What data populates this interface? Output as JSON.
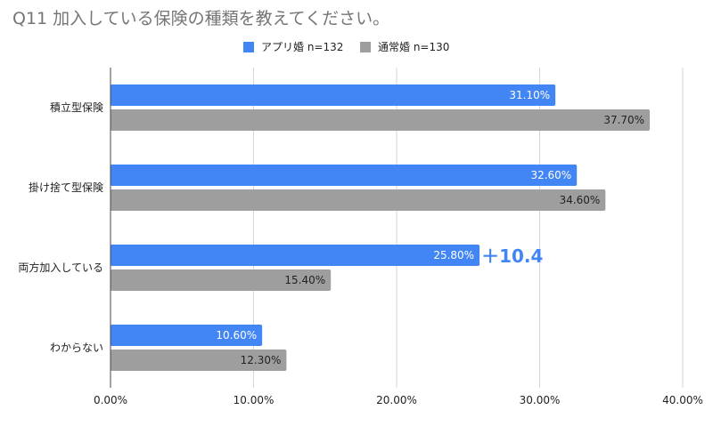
{
  "chart_data": {
    "type": "bar",
    "orientation": "horizontal",
    "title": "Q11 加入している保険の種類を教えてください。",
    "categories": [
      "積立型保険",
      "掛け捨て型保険",
      "両方加入している",
      "わからない"
    ],
    "series": [
      {
        "name": "アプリ婚 n=132",
        "color": "#4285f4",
        "values": [
          31.1,
          32.6,
          25.8,
          10.6
        ],
        "labels": [
          "31.10%",
          "32.60%",
          "25.80%",
          "10.60%"
        ]
      },
      {
        "name": "通常婚 n=130",
        "color": "#9e9e9e",
        "values": [
          37.7,
          34.6,
          15.4,
          12.3
        ],
        "labels": [
          "37.70%",
          "34.60%",
          "15.40%",
          "12.30%"
        ]
      }
    ],
    "xlim": [
      0,
      40
    ],
    "xticks": [
      "0.00%",
      "10.00%",
      "20.00%",
      "30.00%",
      "40.00%"
    ],
    "grid": true,
    "legend": "top-right",
    "annotations": [
      {
        "text": "＋10.4",
        "category": "両方加入している",
        "color": "#4285f4"
      }
    ]
  }
}
